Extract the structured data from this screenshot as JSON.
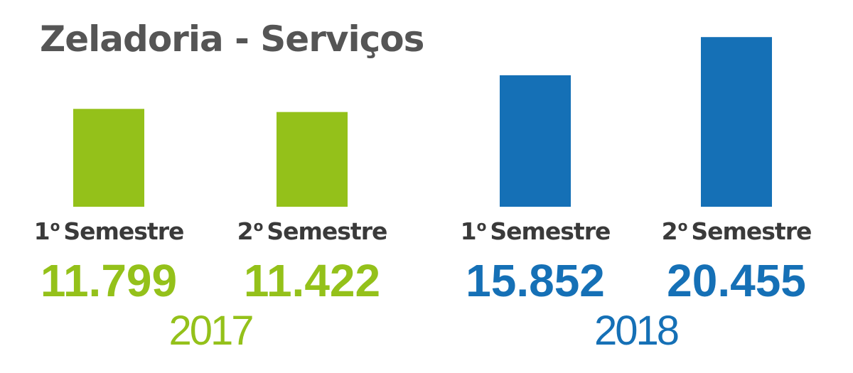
{
  "title": "Zeladoria - Serviços",
  "colors": {
    "y2017": "#94c11a",
    "y2018": "#1570b6",
    "title": "#555555",
    "label": "#3a3a3a"
  },
  "chart_data": {
    "type": "bar",
    "title": "Zeladoria - Serviços",
    "categories": [
      {
        "number": "1",
        "ordinal": "o",
        "text": "Semestre"
      },
      {
        "number": "2",
        "ordinal": "o",
        "text": "Semestre"
      },
      {
        "number": "1",
        "ordinal": "o",
        "text": "Semestre"
      },
      {
        "number": "2",
        "ordinal": "o",
        "text": "Semestre"
      }
    ],
    "values": [
      11799,
      11422,
      15852,
      20455
    ],
    "value_labels": [
      "11.799",
      "11.422",
      "15.852",
      "20.455"
    ],
    "groups": [
      {
        "label": "2017",
        "members": [
          0,
          1
        ]
      },
      {
        "label": "2018",
        "members": [
          2,
          3
        ]
      }
    ],
    "ylim": [
      0,
      21500
    ],
    "grid": false,
    "legend": "none"
  }
}
